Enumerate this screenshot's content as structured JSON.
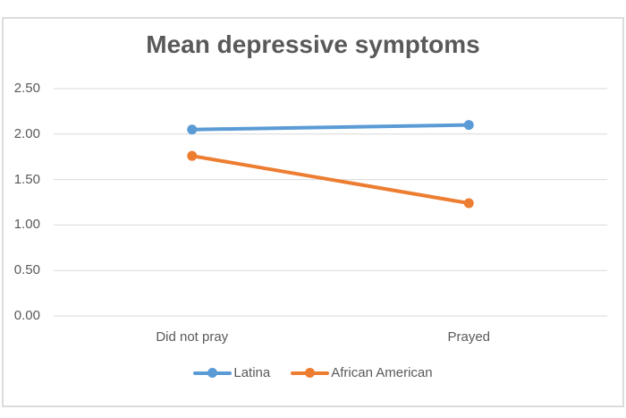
{
  "chart_data": {
    "type": "line",
    "title": "Mean depressive symptoms",
    "categories": [
      "Did not pray",
      "Prayed"
    ],
    "series": [
      {
        "name": "Latina",
        "values": [
          2.05,
          2.1
        ],
        "color": "#5B9BD5"
      },
      {
        "name": "African American",
        "values": [
          1.76,
          1.24
        ],
        "color": "#ED7D31"
      }
    ],
    "ylim": [
      0,
      2.5
    ],
    "yticks": [
      "2.50",
      "2.00",
      "1.50",
      "1.00",
      "0.50",
      "0.00"
    ],
    "xlabel": "",
    "ylabel": "",
    "grid": true,
    "legend_position": "bottom"
  },
  "colors": {
    "grid": "#D9D9D9",
    "frame_border": "#DCDCDC",
    "text": "#595959",
    "background": "#FFFFFF"
  }
}
